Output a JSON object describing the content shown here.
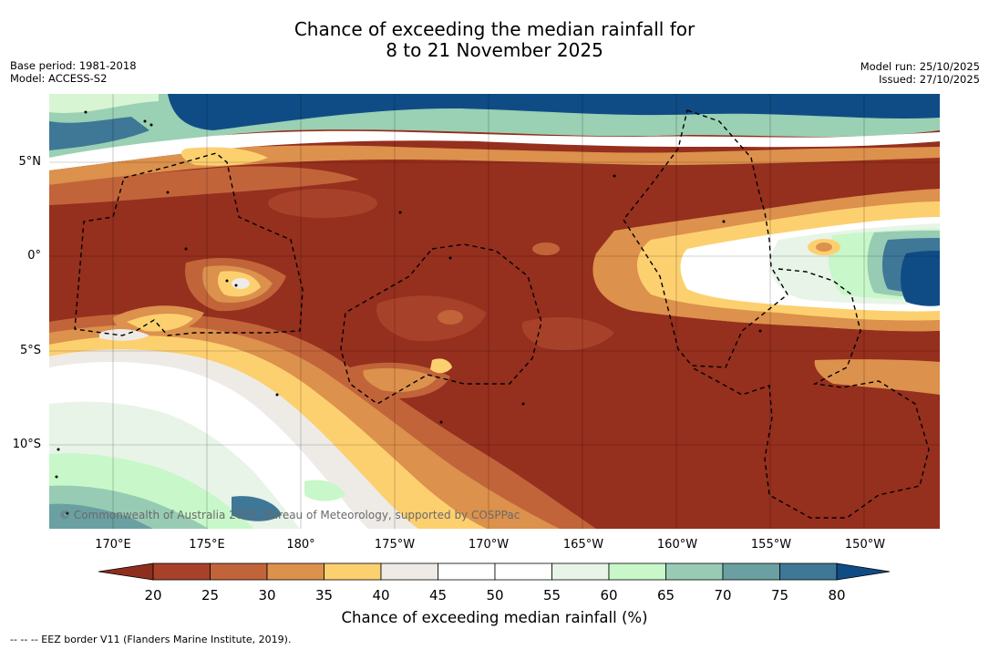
{
  "title": {
    "line1": "Chance of exceeding the median rainfall for",
    "line2": "8 to 21 November 2025"
  },
  "meta_left": {
    "base_period": "Base period: 1981-2018",
    "model": "Model: ACCESS-S2"
  },
  "meta_right": {
    "model_run": "Model run: 25/10/2025",
    "issued": "Issued: 27/10/2025"
  },
  "map": {
    "lat_labels": [
      "5°N",
      "0°",
      "5°S",
      "10°S"
    ],
    "lon_labels": [
      "170°E",
      "175°E",
      "180°",
      "175°W",
      "170°W",
      "165°W",
      "160°W",
      "155°W",
      "150°W"
    ],
    "copyright": "© Commonwealth of Australia 2025, Bureau of Meteorology, supported by COSPPac"
  },
  "colorbar": {
    "label": "Chance of exceeding median rainfall (%)",
    "ticks": [
      "20",
      "25",
      "30",
      "35",
      "40",
      "45",
      "50",
      "55",
      "60",
      "65",
      "70",
      "75",
      "80"
    ],
    "colors": {
      "under": "#8e2f1d",
      "b20_25": "#a8412a",
      "b25_30": "#c2643a",
      "b30_35": "#dc914c",
      "b35_40": "#fdd06f",
      "b40_45": "#eeebe7",
      "b45_50": "#ffffff",
      "b50_55": "#ffffff",
      "b55_60": "#e8f4e7",
      "b60_65": "#c8f7c9",
      "b65_70": "#98cbb4",
      "b70_75": "#6aa0a2",
      "b75_80": "#3f7797",
      "over": "#0f4c86"
    }
  },
  "footnote": "-- -- -- EEZ border V11 (Flanders Marine Institute, 2019)."
}
